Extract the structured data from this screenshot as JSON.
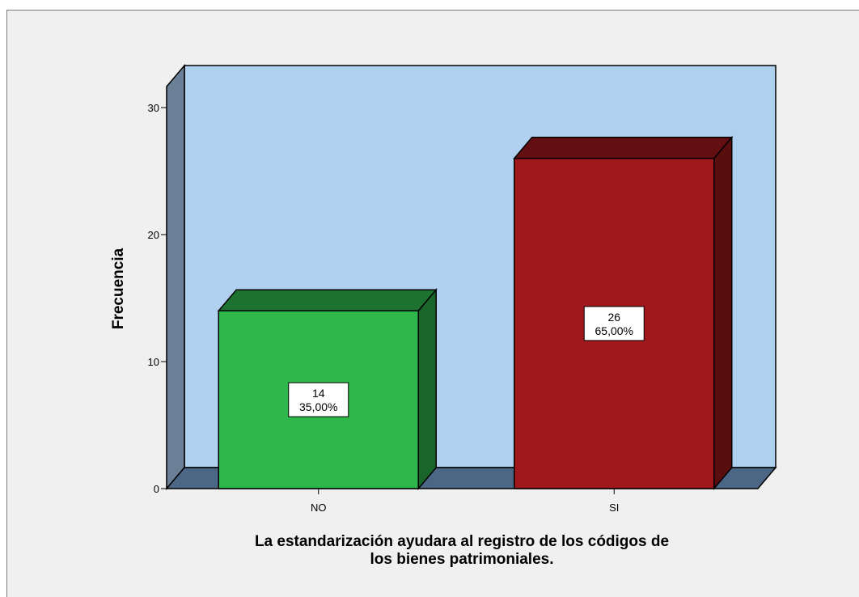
{
  "chart_data": {
    "type": "bar",
    "style": "3d",
    "categories": [
      "NO",
      "SI"
    ],
    "values": [
      14,
      26
    ],
    "percent_labels": [
      "35,00%",
      "65,00%"
    ],
    "count_labels": [
      "14",
      "26"
    ],
    "bar_colors": [
      "#2eb84c",
      "#a0171c"
    ],
    "wall_color": "#afd0ef",
    "floor_color": "#4b6785",
    "side_wall_color": "#6b7f96",
    "ylabel": "Frecuencia",
    "xlabel_lines": [
      "La estandarización ayudara al registro de los códigos de",
      "los bienes patrimoniales."
    ],
    "ylim": [
      0,
      30
    ],
    "yticks": [
      0,
      10,
      20,
      30
    ],
    "ytick_labels": [
      "0",
      "10",
      "20",
      "30"
    ],
    "grid": false,
    "legend": "none"
  }
}
